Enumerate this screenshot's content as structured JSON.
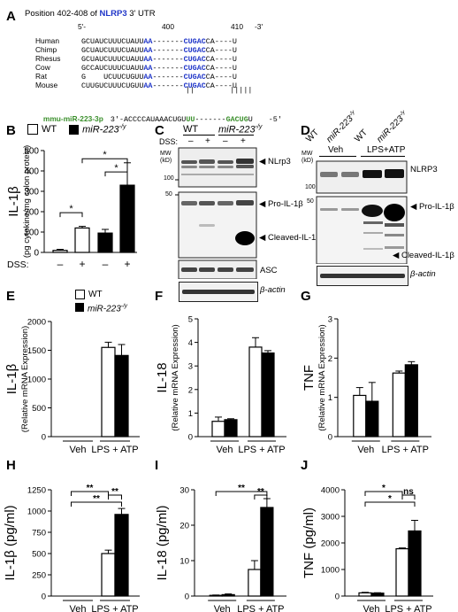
{
  "panel_letters": [
    "A",
    "B",
    "C",
    "D",
    "E",
    "F",
    "G",
    "H",
    "I",
    "J"
  ],
  "panelA": {
    "title_prefix": "Position 402-408 of ",
    "gene": "NLRP3",
    "title_suffix": " 3' UTR",
    "pos_left": "5'-",
    "pos_400": "400",
    "pos_410": "410",
    "pos_right": "-3'",
    "species": [
      {
        "name": "Human",
        "pre": "GCUAUCUUUCUAUU",
        "aa": "AA",
        "mid": "-------",
        "site": "CUGAC",
        "post": "CA----U"
      },
      {
        "name": "Chimp",
        "pre": "GCUAUCUUUCUAUU",
        "aa": "AA",
        "mid": "-------",
        "site": "CUGAC",
        "post": "CA----U"
      },
      {
        "name": "Rhesus",
        "pre": "GCUAUCUUUCUAUU",
        "aa": "AA",
        "mid": "-------",
        "site": "CUGAC",
        "post": "CA----U"
      },
      {
        "name": "Cow",
        "pre": "GCCAUCUUUCUAUU",
        "aa": "AA",
        "mid": "-------",
        "site": "CUGAC",
        "post": "CA----U"
      },
      {
        "name": "Rat",
        "pre": "G    UCUUCUGUU",
        "aa": "AA",
        "mid": "-------",
        "site": "CUGAC",
        "post": "CA----U"
      },
      {
        "name": "Mouse",
        "pre": "CUUGUCUUUCUGUU",
        "aa": "AA",
        "mid": "-------",
        "site": "CUGAC",
        "post": "CA----U"
      }
    ],
    "bars": "||        |||||",
    "mir_name": "mmu-miR-223-3p",
    "mir_pre": "3'-ACCCCAUAAACUGU",
    "mir_uu": "UU",
    "mir_mid": "-------",
    "mir_site": "GACUG",
    "mir_post": "U",
    "mir_end": "-5'"
  },
  "legend": {
    "wt": "WT",
    "ko": "miR-223",
    "ko_sup": "-/y"
  },
  "panelB": {
    "ylabel": "IL-1β",
    "ylabel2": "(pg cytokine/mg colon protein)",
    "dss": "DSS:",
    "star": "*"
  },
  "blotC": {
    "wt": "WT",
    "ko": "miR-223",
    "ko_sup": "-/y",
    "dss": "DSS:",
    "minus": "–",
    "plus": "+",
    "mw": "MW",
    "kd": "(kD)",
    "m100": "100",
    "m50": "50",
    "nlrp3": "NLrp3",
    "pro": "Pro-IL-1β",
    "cleaved": "Cleaved-IL-1β",
    "asc": "ASC",
    "actin": "β-actin"
  },
  "blotD": {
    "wt": "WT",
    "ko": "miR-223",
    "ko_sup": "-/y",
    "veh": "Veh",
    "lps": "LPS+ATP",
    "mw": "MW",
    "kd": "(kD)",
    "m100": "100",
    "m50": "50",
    "nlrp3": "NLRP3",
    "pro": "Pro-IL-1β",
    "cleaved": "Cleaved-IL-1β",
    "actin": "β-actin"
  },
  "chart_data": [
    {
      "panel": "B",
      "type": "bar",
      "categories": [
        "–",
        "+",
        "–",
        "+"
      ],
      "series": [
        {
          "name": "WT",
          "values": [
            10,
            120,
            null,
            null
          ]
        },
        {
          "name": "miR-223-/y",
          "values": [
            null,
            null,
            95,
            330
          ]
        }
      ],
      "errors": [
        5,
        8,
        18,
        110
      ],
      "ylim": [
        0,
        500
      ],
      "yticks": [
        0,
        100,
        200,
        300,
        400,
        500
      ],
      "ylabel": "IL-1β (pg cytokine/mg colon protein)",
      "xlabel": "DSS:"
    },
    {
      "panel": "E",
      "type": "bar",
      "categories": [
        "Veh",
        "LPS + ATP"
      ],
      "series": [
        {
          "name": "WT",
          "values": [
            0,
            1550
          ]
        },
        {
          "name": "miR-223-/y",
          "values": [
            0,
            1410
          ]
        }
      ],
      "errors": [
        [
          0,
          0
        ],
        [
          90,
          190
        ]
      ],
      "ylim": [
        0,
        2000
      ],
      "yticks": [
        0,
        500,
        1000,
        1500,
        2000
      ],
      "ylabel": "IL-1β (Relative mRNA Expression)"
    },
    {
      "panel": "F",
      "type": "bar",
      "categories": [
        "Veh",
        "LPS + ATP"
      ],
      "series": [
        {
          "name": "WT",
          "values": [
            0.65,
            3.8
          ]
        },
        {
          "name": "miR-223-/y",
          "values": [
            0.72,
            3.55
          ]
        }
      ],
      "errors": [
        [
          0.18,
          0.04
        ],
        [
          0.4,
          0.1
        ]
      ],
      "ylim": [
        0,
        5
      ],
      "yticks": [
        0,
        1,
        2,
        3,
        4,
        5
      ],
      "ylabel": "IL-18 (Relative mRNA Expression)"
    },
    {
      "panel": "G",
      "type": "bar",
      "categories": [
        "Veh",
        "LPS + ATP"
      ],
      "series": [
        {
          "name": "WT",
          "values": [
            1.05,
            1.62
          ]
        },
        {
          "name": "miR-223-/y",
          "values": [
            0.9,
            1.83
          ]
        }
      ],
      "errors": [
        [
          0.2,
          0.48
        ],
        [
          0.05,
          0.08
        ]
      ],
      "ylim": [
        0,
        3
      ],
      "yticks": [
        0,
        1,
        2,
        3
      ],
      "ylabel": "TNF (Relative mRNA Expression)"
    },
    {
      "panel": "H",
      "type": "bar",
      "categories": [
        "Veh",
        "LPS + ATP"
      ],
      "series": [
        {
          "name": "WT",
          "values": [
            0,
            500
          ]
        },
        {
          "name": "miR-223-/y",
          "values": [
            0,
            960
          ]
        }
      ],
      "errors": [
        [
          0,
          0
        ],
        [
          40,
          70
        ]
      ],
      "ylim": [
        0,
        1250
      ],
      "yticks": [
        0,
        250,
        500,
        750,
        1000,
        1250
      ],
      "ylabel": "IL-1β (pg/ml)",
      "sig": [
        {
          "a": 0,
          "b": 2,
          "t": "**"
        },
        {
          "a": 0,
          "b": 3,
          "t": "**"
        },
        {
          "a": 2,
          "b": 3,
          "t": "**"
        }
      ]
    },
    {
      "panel": "I",
      "type": "bar",
      "categories": [
        "Veh",
        "LPS + ATP"
      ],
      "series": [
        {
          "name": "WT",
          "values": [
            0.2,
            7.5
          ]
        },
        {
          "name": "miR-223-/y",
          "values": [
            0.4,
            25
          ]
        }
      ],
      "errors": [
        [
          0.1,
          0.2
        ],
        [
          2.5,
          2.5
        ]
      ],
      "ylim": [
        0,
        30
      ],
      "yticks": [
        0,
        10,
        20,
        30
      ],
      "ylabel": "IL-18 (pg/ml)",
      "sig": [
        {
          "a": 0,
          "b": 3,
          "t": "**"
        },
        {
          "a": 2,
          "b": 3,
          "t": "**"
        }
      ]
    },
    {
      "panel": "J",
      "type": "bar",
      "categories": [
        "Veh",
        "LPS + ATP"
      ],
      "series": [
        {
          "name": "WT",
          "values": [
            120,
            1780
          ]
        },
        {
          "name": "miR-223-/y",
          "values": [
            110,
            2450
          ]
        }
      ],
      "errors": [
        [
          20,
          15
        ],
        [
          30,
          400
        ]
      ],
      "ylim": [
        0,
        4000
      ],
      "yticks": [
        0,
        1000,
        2000,
        3000,
        4000
      ],
      "ylabel": "TNF (pg/ml)",
      "sig": [
        {
          "a": 0,
          "b": 2,
          "t": "*"
        },
        {
          "a": 0,
          "b": 3,
          "t": "*"
        },
        {
          "a": 2,
          "b": 3,
          "t": "ns"
        }
      ]
    }
  ]
}
